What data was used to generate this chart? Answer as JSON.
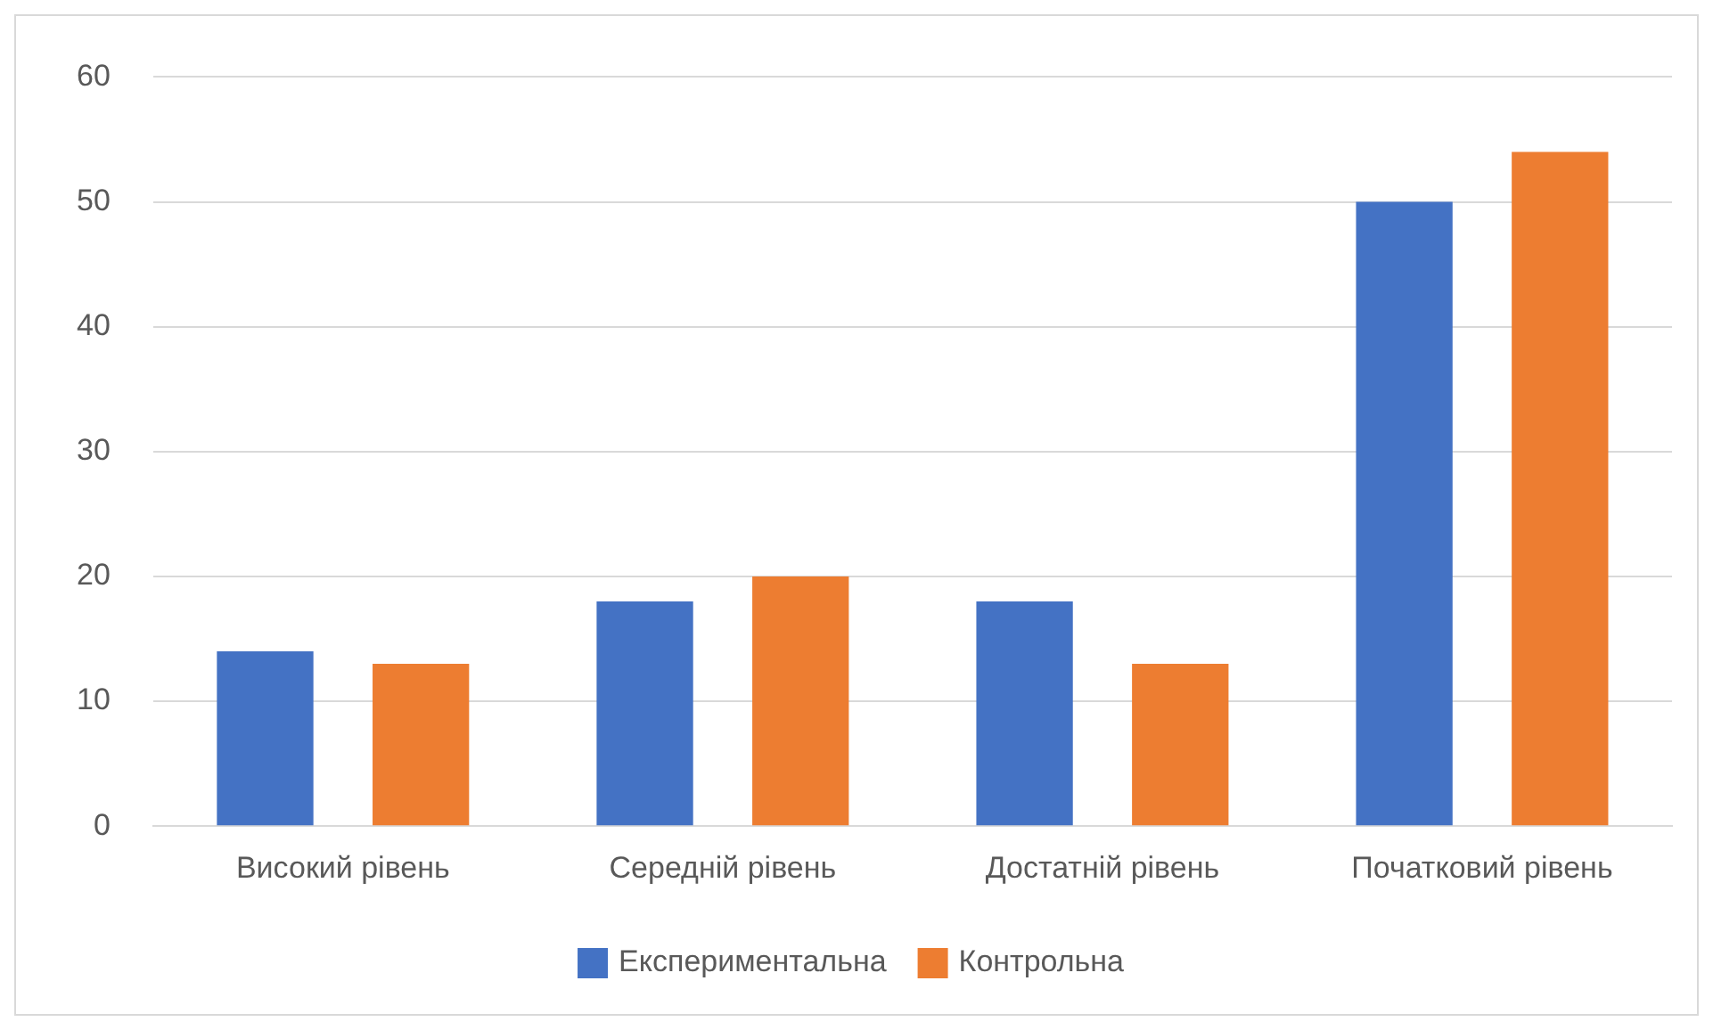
{
  "chart_data": {
    "type": "bar",
    "categories": [
      "Високий рівень",
      "Середній рівень",
      "Достатній рівень",
      "Початковий рівень"
    ],
    "series": [
      {
        "name": "Експериментальна",
        "color": "#4472c4",
        "values": [
          14,
          18,
          18,
          50
        ]
      },
      {
        "name": "Контрольна",
        "color": "#ed7d31",
        "values": [
          13,
          20,
          13,
          54
        ]
      }
    ],
    "ylim": [
      0,
      60
    ],
    "yticks": [
      0,
      10,
      20,
      30,
      40,
      50,
      60
    ],
    "grid": "y",
    "legend": "bottom"
  }
}
